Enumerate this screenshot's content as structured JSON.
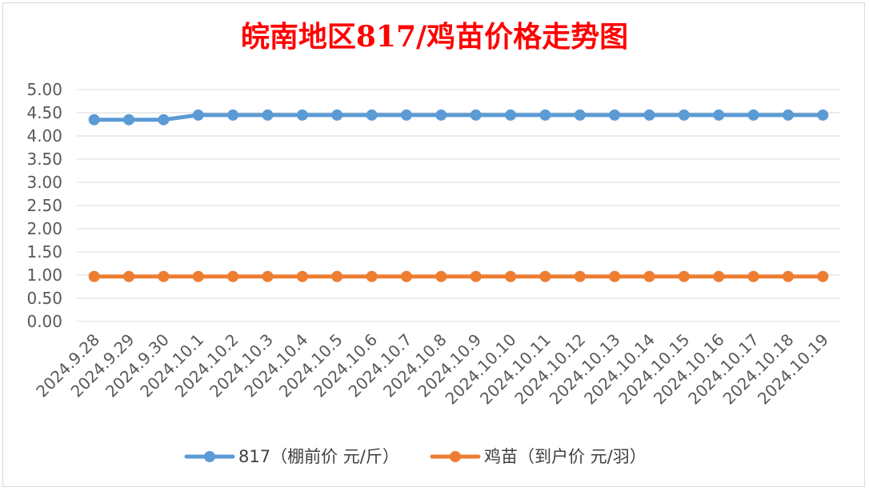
{
  "chart_data": {
    "type": "line",
    "title": "皖南地区817/鸡苗价格走势图",
    "title_color": "#ff0000",
    "categories": [
      "2024.9.28",
      "2024.9.29",
      "2024.9.30",
      "2024.10.1",
      "2024.10.2",
      "2024.10.3",
      "2024.10.4",
      "2024.10.5",
      "2024.10.6",
      "2024.10.7",
      "2024.10.8",
      "2024.10.9",
      "2024.10.10",
      "2024.10.11",
      "2024.10.12",
      "2024.10.13",
      "2024.10.14",
      "2024.10.15",
      "2024.10.16",
      "2024.10.17",
      "2024.10.18",
      "2024.10.19"
    ],
    "series": [
      {
        "name": "817（棚前价 元/斤）",
        "color": "#5b9bd5",
        "values": [
          4.35,
          4.35,
          4.35,
          4.45,
          4.45,
          4.45,
          4.45,
          4.45,
          4.45,
          4.45,
          4.45,
          4.45,
          4.45,
          4.45,
          4.45,
          4.45,
          4.45,
          4.45,
          4.45,
          4.45,
          4.45,
          4.45
        ]
      },
      {
        "name": "鸡苗（到户价 元/羽）",
        "color": "#ed7d31",
        "values": [
          0.97,
          0.97,
          0.97,
          0.97,
          0.97,
          0.97,
          0.97,
          0.97,
          0.97,
          0.97,
          0.97,
          0.97,
          0.97,
          0.97,
          0.97,
          0.97,
          0.97,
          0.97,
          0.97,
          0.97,
          0.97,
          0.97
        ]
      }
    ],
    "y_ticks": [
      "0.00",
      "0.50",
      "1.00",
      "1.50",
      "2.00",
      "2.50",
      "3.00",
      "3.50",
      "4.00",
      "4.50",
      "5.00"
    ],
    "ylim": [
      0,
      5
    ],
    "grid": true,
    "legend_position": "bottom",
    "xlabel": "",
    "ylabel": ""
  }
}
